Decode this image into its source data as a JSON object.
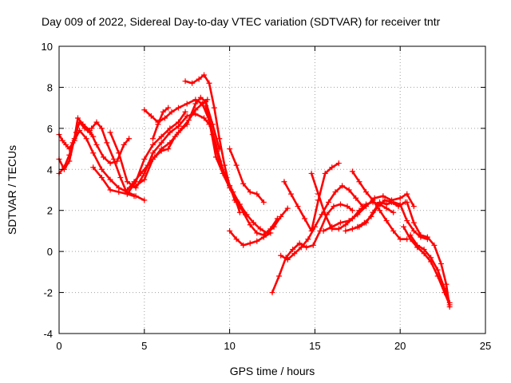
{
  "chart_data": {
    "type": "scatter",
    "title": "Day 009 of 2022, Sidereal Day-to-day VTEC variation (SDTVAR) for receiver tntr",
    "xlabel": "GPS time / hours",
    "ylabel": "SDTVAR / TECUs",
    "xlim": [
      0,
      25
    ],
    "ylim": [
      -4,
      10
    ],
    "xticks": [
      "0",
      "5",
      "10",
      "15",
      "20",
      "25"
    ],
    "yticks": [
      "-4",
      "-2",
      "0",
      "2",
      "4",
      "6",
      "8",
      "10"
    ],
    "grid": true,
    "marker": "+",
    "color": "#ff0000",
    "series": [
      {
        "x": [
          0.0,
          0.2,
          0.4,
          0.6,
          0.8,
          1.0,
          1.2,
          1.5,
          1.8,
          2.0
        ],
        "values": [
          5.7,
          5.4,
          5.2,
          5.0,
          5.3,
          5.8,
          6.3,
          6.0,
          5.8,
          5.6
        ]
      },
      {
        "x": [
          0.0,
          0.3,
          0.6,
          0.9,
          1.1,
          1.4,
          1.8,
          2.2,
          2.6,
          3.0,
          3.4,
          3.8,
          4.1
        ],
        "values": [
          4.5,
          4.0,
          4.4,
          5.5,
          6.5,
          6.2,
          5.9,
          5.2,
          4.6,
          4.3,
          4.4,
          5.2,
          5.5
        ]
      },
      {
        "x": [
          0.0,
          0.3,
          0.6,
          0.9,
          1.2,
          1.6,
          2.0,
          2.5,
          3.0,
          3.5,
          4.0,
          4.5,
          5.0
        ],
        "values": [
          3.8,
          4.1,
          4.7,
          5.4,
          5.9,
          5.5,
          4.8,
          4.0,
          3.5,
          3.1,
          2.9,
          2.7,
          2.5
        ]
      },
      {
        "x": [
          1.9,
          2.2,
          2.5,
          2.8,
          3.2,
          3.6,
          4.0,
          4.4
        ],
        "values": [
          6.0,
          6.3,
          6.0,
          5.3,
          4.5,
          3.6,
          2.8,
          2.7
        ]
      },
      {
        "x": [
          2.0,
          2.5,
          3.0,
          3.5,
          4.0,
          4.5,
          5.0,
          5.5,
          6.0,
          6.5,
          7.0,
          7.4
        ],
        "values": [
          4.1,
          3.6,
          3.0,
          2.9,
          2.8,
          3.4,
          4.5,
          5.2,
          5.6,
          6.0,
          6.3,
          6.8
        ]
      },
      {
        "x": [
          3.0,
          3.5,
          4.0,
          4.5,
          5.0,
          5.5,
          6.0,
          6.5,
          7.0,
          7.5,
          8.0,
          8.5,
          8.8
        ],
        "values": [
          5.8,
          4.8,
          3.4,
          3.1,
          3.8,
          4.8,
          5.3,
          5.8,
          6.1,
          6.6,
          6.7,
          6.5,
          6.2
        ]
      },
      {
        "x": [
          4.0,
          4.4,
          4.8,
          5.2,
          5.6,
          6.0,
          6.4,
          6.8,
          7.2,
          7.6,
          8.0,
          8.4,
          8.7
        ],
        "values": [
          3.0,
          3.4,
          3.8,
          4.2,
          4.6,
          4.9,
          5.0,
          5.6,
          6.0,
          6.4,
          6.9,
          7.2,
          7.4
        ]
      },
      {
        "x": [
          4.5,
          5.0,
          5.5,
          6.0,
          6.5,
          7.0,
          7.5,
          8.0,
          8.3,
          8.6,
          9.0,
          9.4
        ],
        "values": [
          3.2,
          3.5,
          4.5,
          5.0,
          5.3,
          5.8,
          6.2,
          7.2,
          7.5,
          7.3,
          6.2,
          5.0
        ]
      },
      {
        "x": [
          5.0,
          5.4,
          5.8,
          6.2,
          6.6,
          7.0,
          7.5,
          8.0,
          8.4,
          8.8,
          9.2,
          9.6,
          10.0,
          10.4,
          10.6
        ],
        "values": [
          6.9,
          6.6,
          6.3,
          6.5,
          6.8,
          7.0,
          7.2,
          7.4,
          7.2,
          6.4,
          5.2,
          4.0,
          3.2,
          2.4,
          1.9
        ]
      },
      {
        "x": [
          5.5,
          5.8,
          6.1,
          6.4
        ],
        "values": [
          5.5,
          6.2,
          6.8,
          7.0
        ]
      },
      {
        "x": [
          7.4,
          7.8,
          8.2,
          8.5,
          8.8,
          9.1,
          9.4,
          9.7,
          10.0,
          10.3,
          10.6
        ],
        "values": [
          8.3,
          8.2,
          8.4,
          8.6,
          8.2,
          7.0,
          5.5,
          4.2,
          3.2,
          2.5,
          2.2
        ]
      },
      {
        "x": [
          8.6,
          9.0,
          9.4,
          9.8,
          10.2,
          10.6,
          11.0,
          11.4,
          11.8,
          12.2,
          12.6,
          13.0,
          13.4
        ],
        "values": [
          7.1,
          5.7,
          4.4,
          3.6,
          2.9,
          2.3,
          1.8,
          1.4,
          1.1,
          0.9,
          1.2,
          1.7,
          2.1
        ]
      },
      {
        "x": [
          8.8,
          9.2,
          9.6,
          10.0,
          10.4,
          10.8,
          11.2,
          11.6,
          12.0,
          12.4,
          12.8
        ],
        "values": [
          6.4,
          4.6,
          3.8,
          3.1,
          2.5,
          1.9,
          1.3,
          0.9,
          0.8,
          1.1,
          1.6
        ]
      },
      {
        "x": [
          10.0,
          10.4,
          10.8,
          11.2,
          11.6,
          12.0
        ],
        "values": [
          5.0,
          4.2,
          3.3,
          2.9,
          2.8,
          2.4
        ]
      },
      {
        "x": [
          10.0,
          10.4,
          10.8,
          11.2,
          11.6,
          12.0,
          12.4
        ],
        "values": [
          1.0,
          0.6,
          0.3,
          0.4,
          0.5,
          0.7,
          0.9
        ]
      },
      {
        "x": [
          12.5,
          12.9,
          13.3,
          13.7,
          14.1,
          14.5,
          14.9,
          15.3,
          15.7,
          16.1,
          16.5,
          16.9,
          17.2
        ],
        "values": [
          -2.0,
          -1.2,
          -0.3,
          0.1,
          0.4,
          0.2,
          0.3,
          1.0,
          1.8,
          2.2,
          2.3,
          2.2,
          2.0
        ]
      },
      {
        "x": [
          13.0,
          13.4,
          13.8,
          14.2,
          14.6,
          15.0,
          15.4,
          15.8,
          16.2,
          16.6,
          17.0,
          17.4,
          17.8
        ],
        "values": [
          -0.2,
          -0.4,
          -0.1,
          0.2,
          0.6,
          1.2,
          1.8,
          2.4,
          2.9,
          3.2,
          3.0,
          2.6,
          2.2
        ]
      },
      {
        "x": [
          13.2,
          13.6,
          14.0,
          14.4,
          14.8,
          15.2,
          15.6,
          16.0,
          16.4
        ],
        "values": [
          3.4,
          2.8,
          2.2,
          1.6,
          1.0,
          2.5,
          3.8,
          4.1,
          4.3
        ]
      },
      {
        "x": [
          14.8,
          15.2,
          15.6,
          16.0,
          16.4,
          16.8,
          17.2,
          17.6,
          18.0,
          18.4,
          18.8,
          19.2,
          19.6
        ],
        "values": [
          3.8,
          2.8,
          1.8,
          1.1,
          1.1,
          1.3,
          1.6,
          2.0,
          2.3,
          2.4,
          2.3,
          2.1,
          1.9
        ]
      },
      {
        "x": [
          15.5,
          16.0,
          16.5,
          17.0,
          17.5,
          18.0,
          18.5,
          19.0,
          19.5,
          20.0,
          20.4,
          20.8
        ],
        "values": [
          1.0,
          1.2,
          1.4,
          1.5,
          1.8,
          2.2,
          2.6,
          2.7,
          2.5,
          2.6,
          2.8,
          2.2
        ]
      },
      {
        "x": [
          16.8,
          17.2,
          17.6,
          18.0,
          18.4,
          18.8,
          19.2,
          19.6,
          20.0,
          20.4,
          20.8,
          21.2,
          21.6
        ],
        "values": [
          1.0,
          1.1,
          1.2,
          1.4,
          1.9,
          2.4,
          2.3,
          2.4,
          2.3,
          1.5,
          1.0,
          0.7,
          0.6
        ]
      },
      {
        "x": [
          17.2,
          17.6,
          18.0,
          18.4,
          18.8,
          19.2,
          19.6,
          20.0,
          20.4
        ],
        "values": [
          3.9,
          3.4,
          2.9,
          2.5,
          2.0,
          1.5,
          1.0,
          0.6,
          0.6
        ]
      },
      {
        "x": [
          17.5,
          17.9,
          18.3,
          18.7,
          19.1,
          19.5,
          19.9,
          20.3
        ],
        "values": [
          1.2,
          1.4,
          1.7,
          2.2,
          2.5,
          2.4,
          2.2,
          2.4
        ]
      },
      {
        "x": [
          20.2,
          20.6,
          21.0,
          21.4,
          21.8,
          22.2,
          22.6,
          22.9
        ],
        "values": [
          1.2,
          0.6,
          0.2,
          -0.1,
          -0.5,
          -1.2,
          -2.0,
          -2.6
        ]
      },
      {
        "x": [
          20.4,
          20.8,
          21.2,
          21.6,
          22.0,
          22.4,
          22.7,
          22.9
        ],
        "values": [
          2.4,
          1.4,
          0.8,
          0.7,
          0.3,
          -0.6,
          -1.6,
          -2.7
        ]
      },
      {
        "x": [
          20.6,
          21.0,
          21.4,
          21.8,
          22.2,
          22.6,
          22.9
        ],
        "values": [
          0.8,
          0.3,
          0.1,
          -0.3,
          -0.9,
          -1.8,
          -2.5
        ]
      }
    ]
  }
}
